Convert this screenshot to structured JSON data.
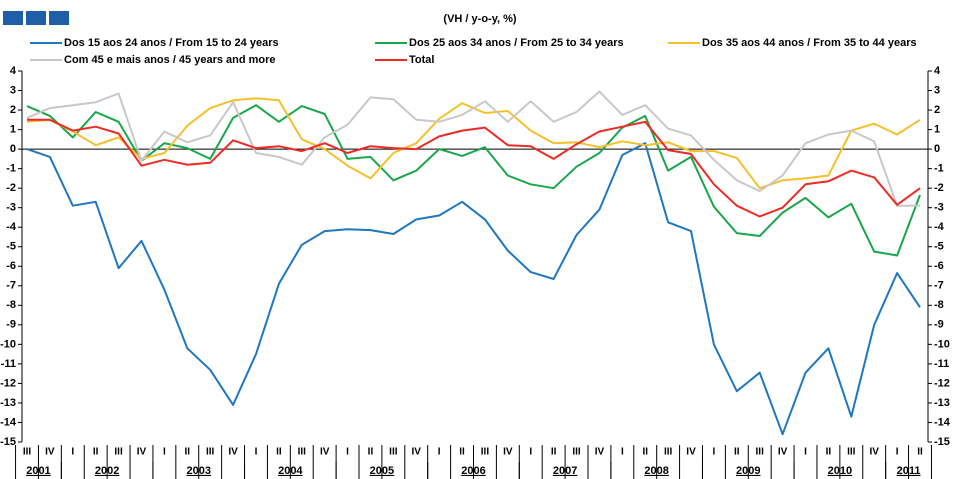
{
  "chart_data": {
    "type": "line",
    "subtitle": "(VH / y-o-y, %)",
    "categories": [
      "III",
      "IV",
      "I",
      "II",
      "III",
      "IV",
      "I",
      "II",
      "III",
      "IV",
      "I",
      "II",
      "III",
      "IV",
      "I",
      "II",
      "III",
      "IV",
      "I",
      "II",
      "III",
      "IV",
      "I",
      "II",
      "III",
      "IV",
      "I",
      "II",
      "III",
      "IV",
      "I",
      "II",
      "III",
      "IV",
      "I",
      "II",
      "III",
      "IV",
      "I",
      "II"
    ],
    "years": [
      "2001",
      "2002",
      "2003",
      "2004",
      "2005",
      "2006",
      "2007",
      "2008",
      "2009",
      "2010",
      "2011"
    ],
    "series": [
      {
        "name": "Dos 15 aos 24 anos / From 15 to 24 years",
        "color": "#1f77c0",
        "values": [
          0,
          -0.4,
          -2.9,
          -2.7,
          -6.1,
          -4.7,
          -7.2,
          -10.2,
          -11.3,
          -13.1,
          -10.5,
          -6.9,
          -4.9,
          -4.2,
          -4.1,
          -4.15,
          -4.35,
          -3.6,
          -3.4,
          -2.7,
          -3.6,
          -5.2,
          -6.3,
          -6.65,
          -4.4,
          -3.1,
          -0.3,
          0.3,
          -3.75,
          -4.2,
          -10,
          -12.4,
          -11.45,
          -14.6,
          -11.45,
          -10.2,
          -13.7,
          -9,
          -6.35,
          -8.1
        ]
      },
      {
        "name": "Dos 25 aos 34 anos / From 25 to 34 years",
        "color": "#1aa64a",
        "values": [
          2.2,
          1.7,
          0.6,
          1.9,
          1.4,
          -0.6,
          0.3,
          0.05,
          -0.5,
          1.6,
          2.25,
          1.4,
          2.2,
          1.8,
          -0.5,
          -0.4,
          -1.6,
          -1.1,
          0,
          -0.35,
          0.1,
          -1.35,
          -1.8,
          -2,
          -0.9,
          -0.2,
          1.1,
          1.7,
          -1.1,
          -0.4,
          -2.95,
          -4.3,
          -4.45,
          -3.25,
          -2.5,
          -3.5,
          -2.8,
          -5.25,
          -5.45,
          -2.35
        ]
      },
      {
        "name": "Dos 35 aos 44 anos / From 35 to 44 years",
        "color": "#f5c02a",
        "values": [
          1.4,
          1.5,
          0.9,
          0.2,
          0.6,
          -0.5,
          -0.2,
          1.2,
          2.1,
          2.5,
          2.6,
          2.5,
          0.5,
          0,
          -0.85,
          -1.5,
          -0.2,
          0.3,
          1.55,
          2.35,
          1.85,
          1.95,
          0.95,
          0.3,
          0.35,
          0.1,
          0.4,
          0.2,
          0.35,
          -0.1,
          -0.1,
          -0.45,
          -2,
          -1.6,
          -1.5,
          -1.35,
          0.95,
          1.3,
          0.75,
          1.5
        ]
      },
      {
        "name": "Com 45 e mais anos / 45 years and more",
        "color": "#c8c8c8",
        "values": [
          1.6,
          2.1,
          2.25,
          2.4,
          2.85,
          -0.6,
          0.9,
          0.35,
          0.7,
          2.4,
          -0.2,
          -0.4,
          -0.8,
          0.6,
          1.25,
          2.65,
          2.55,
          1.5,
          1.4,
          1.75,
          2.45,
          1.4,
          2.45,
          1.4,
          1.9,
          2.95,
          1.75,
          2.25,
          1.05,
          0.7,
          -0.55,
          -1.6,
          -2.15,
          -1.35,
          0.3,
          0.75,
          0.95,
          0.4,
          -2.9,
          -2.9
        ]
      },
      {
        "name": "Total",
        "color": "#ee2a24",
        "values": [
          1.5,
          1.5,
          0.95,
          1.15,
          0.8,
          -0.85,
          -0.55,
          -0.8,
          -0.7,
          0.45,
          0.05,
          0.15,
          -0.1,
          0.3,
          -0.2,
          0.15,
          0.05,
          0,
          0.65,
          0.95,
          1.1,
          0.2,
          0.15,
          -0.5,
          0.25,
          0.9,
          1.15,
          1.4,
          -0.05,
          -0.25,
          -1.8,
          -2.9,
          -3.45,
          -3,
          -1.8,
          -1.65,
          -1.1,
          -1.45,
          -2.85,
          -2
        ]
      }
    ],
    "ylim": [
      -15,
      4
    ],
    "yticks": [
      -15,
      -14,
      -13,
      -12,
      -11,
      -10,
      -9,
      -8,
      -7,
      -6,
      -5,
      -4,
      -3,
      -2,
      -1,
      0,
      1,
      2,
      3,
      4
    ],
    "y2lim": [
      -15,
      4
    ],
    "y2ticks": [
      -15,
      -14,
      -13,
      -12,
      -11,
      -10,
      -9,
      -8,
      -7,
      -6,
      -5,
      -4,
      -3,
      -2,
      -1,
      0,
      1,
      2,
      3,
      4
    ]
  }
}
